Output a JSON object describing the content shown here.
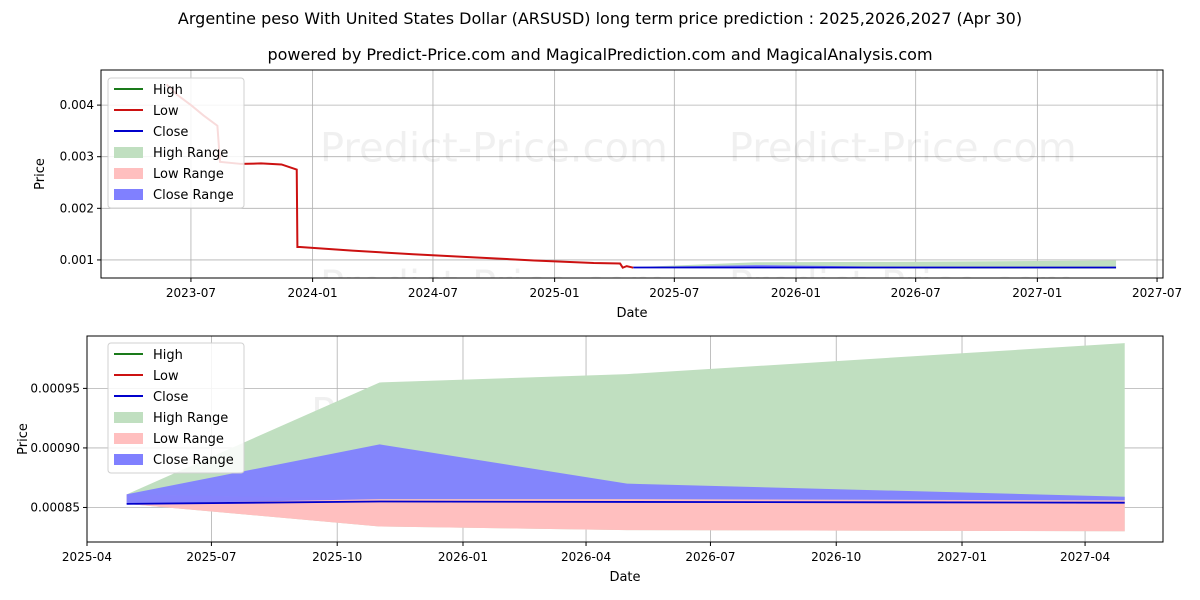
{
  "header": {
    "title": "Argentine peso With United States Dollar (ARSUSD) long term price prediction : 2025,2026,2027 (Apr 30)",
    "subtitle": "powered by Predict-Price.com and MagicalPrediction.com and MagicalAnalysis.com"
  },
  "watermark": "Predict-Price.com",
  "colors": {
    "high": "#1a7a1a",
    "low": "#cc1111",
    "close": "#0000cc",
    "high_range": "#c0dfc0",
    "low_range": "#ffbfbf",
    "close_range": "#8080ff",
    "grid": "#b0b0b0"
  },
  "chart_data": [
    {
      "type": "line",
      "xlabel": "Date",
      "ylabel": "Price",
      "xlim": [
        "2023-02-15",
        "2027-07-10"
      ],
      "ylim": [
        0.00065,
        0.00468
      ],
      "x_ticks": [
        "2023-07",
        "2024-01",
        "2024-07",
        "2025-01",
        "2025-07",
        "2026-01",
        "2026-07",
        "2027-01",
        "2027-07"
      ],
      "y_ticks": [
        "0.001",
        "0.002",
        "0.003",
        "0.004"
      ],
      "grid": true,
      "legend": {
        "position": "top-left",
        "entries": [
          "High",
          "Low",
          "Close",
          "High Range",
          "Low Range",
          "Close Range"
        ]
      },
      "series": [
        {
          "name": "Low",
          "x": [
            "2023-05-25",
            "2023-06-10",
            "2023-07-01",
            "2023-07-20",
            "2023-08-10",
            "2023-08-14",
            "2023-09-15",
            "2023-10-15",
            "2023-11-15",
            "2023-12-08",
            "2023-12-09",
            "2023-12-13",
            "2024-03-01",
            "2024-06-01",
            "2024-09-01",
            "2024-12-01",
            "2025-03-01",
            "2025-04-10",
            "2025-04-14",
            "2025-04-20",
            "2025-04-30"
          ],
          "values": [
            0.0044,
            0.0042,
            0.004,
            0.0038,
            0.0036,
            0.0029,
            0.00286,
            0.00287,
            0.00285,
            0.00275,
            0.00125,
            0.00125,
            0.00118,
            0.00111,
            0.00105,
            0.00099,
            0.00094,
            0.00093,
            0.00085,
            0.00088,
            0.00085
          ]
        },
        {
          "name": "High Range",
          "x": [
            "2025-04-30",
            "2025-11-01",
            "2026-05-01",
            "2027-04-30"
          ],
          "upper": [
            0.00086,
            0.000955,
            0.000962,
            0.000988
          ],
          "lower": [
            0.00085,
            0.000834,
            0.000831,
            0.00083
          ]
        },
        {
          "name": "Close Range",
          "x": [
            "2025-04-30",
            "2025-11-01",
            "2026-05-01",
            "2027-04-30"
          ],
          "upper": [
            0.00086,
            0.000903,
            0.00087,
            0.000859
          ],
          "lower": [
            0.00085,
            0.000853,
            0.000853,
            0.000853
          ]
        },
        {
          "name": "Close",
          "x": [
            "2025-04-30",
            "2027-04-30"
          ],
          "values": [
            0.000853,
            0.000853
          ]
        }
      ]
    },
    {
      "type": "area",
      "xlabel": "Date",
      "ylabel": "Price",
      "xlim": [
        "2025-04-01",
        "2027-05-28"
      ],
      "ylim": [
        0.000821,
        0.000994
      ],
      "x_ticks": [
        "2025-04",
        "2025-07",
        "2025-10",
        "2026-01",
        "2026-04",
        "2026-07",
        "2026-10",
        "2027-01",
        "2027-04"
      ],
      "y_ticks": [
        "0.00085",
        "0.00090",
        "0.00095"
      ],
      "grid": true,
      "legend": {
        "position": "top-left",
        "entries": [
          "High",
          "Low",
          "Close",
          "High Range",
          "Low Range",
          "Close Range"
        ]
      },
      "series": [
        {
          "name": "High Range",
          "x": [
            "2025-04-30",
            "2025-11-01",
            "2026-05-01",
            "2027-04-30"
          ],
          "upper": [
            0.000861,
            0.000955,
            0.000962,
            0.000988
          ],
          "lower": [
            0.000853,
            0.000834,
            0.000831,
            0.00083
          ]
        },
        {
          "name": "Low Range",
          "x": [
            "2025-04-30",
            "2025-11-01",
            "2026-05-01",
            "2027-04-30"
          ],
          "upper": [
            0.000861,
            0.000857,
            0.000857,
            0.000856
          ],
          "lower": [
            0.000853,
            0.000834,
            0.000831,
            0.00083
          ]
        },
        {
          "name": "Close Range",
          "x": [
            "2025-04-30",
            "2025-11-01",
            "2026-05-01",
            "2027-04-30"
          ],
          "upper": [
            0.000861,
            0.000903,
            0.00087,
            0.000859
          ],
          "lower": [
            0.000853,
            0.000857,
            0.000857,
            0.000856
          ]
        },
        {
          "name": "Close",
          "x": [
            "2025-04-30",
            "2025-11-01",
            "2027-04-30"
          ],
          "values": [
            0.000853,
            0.000855,
            0.000854
          ]
        }
      ]
    }
  ]
}
